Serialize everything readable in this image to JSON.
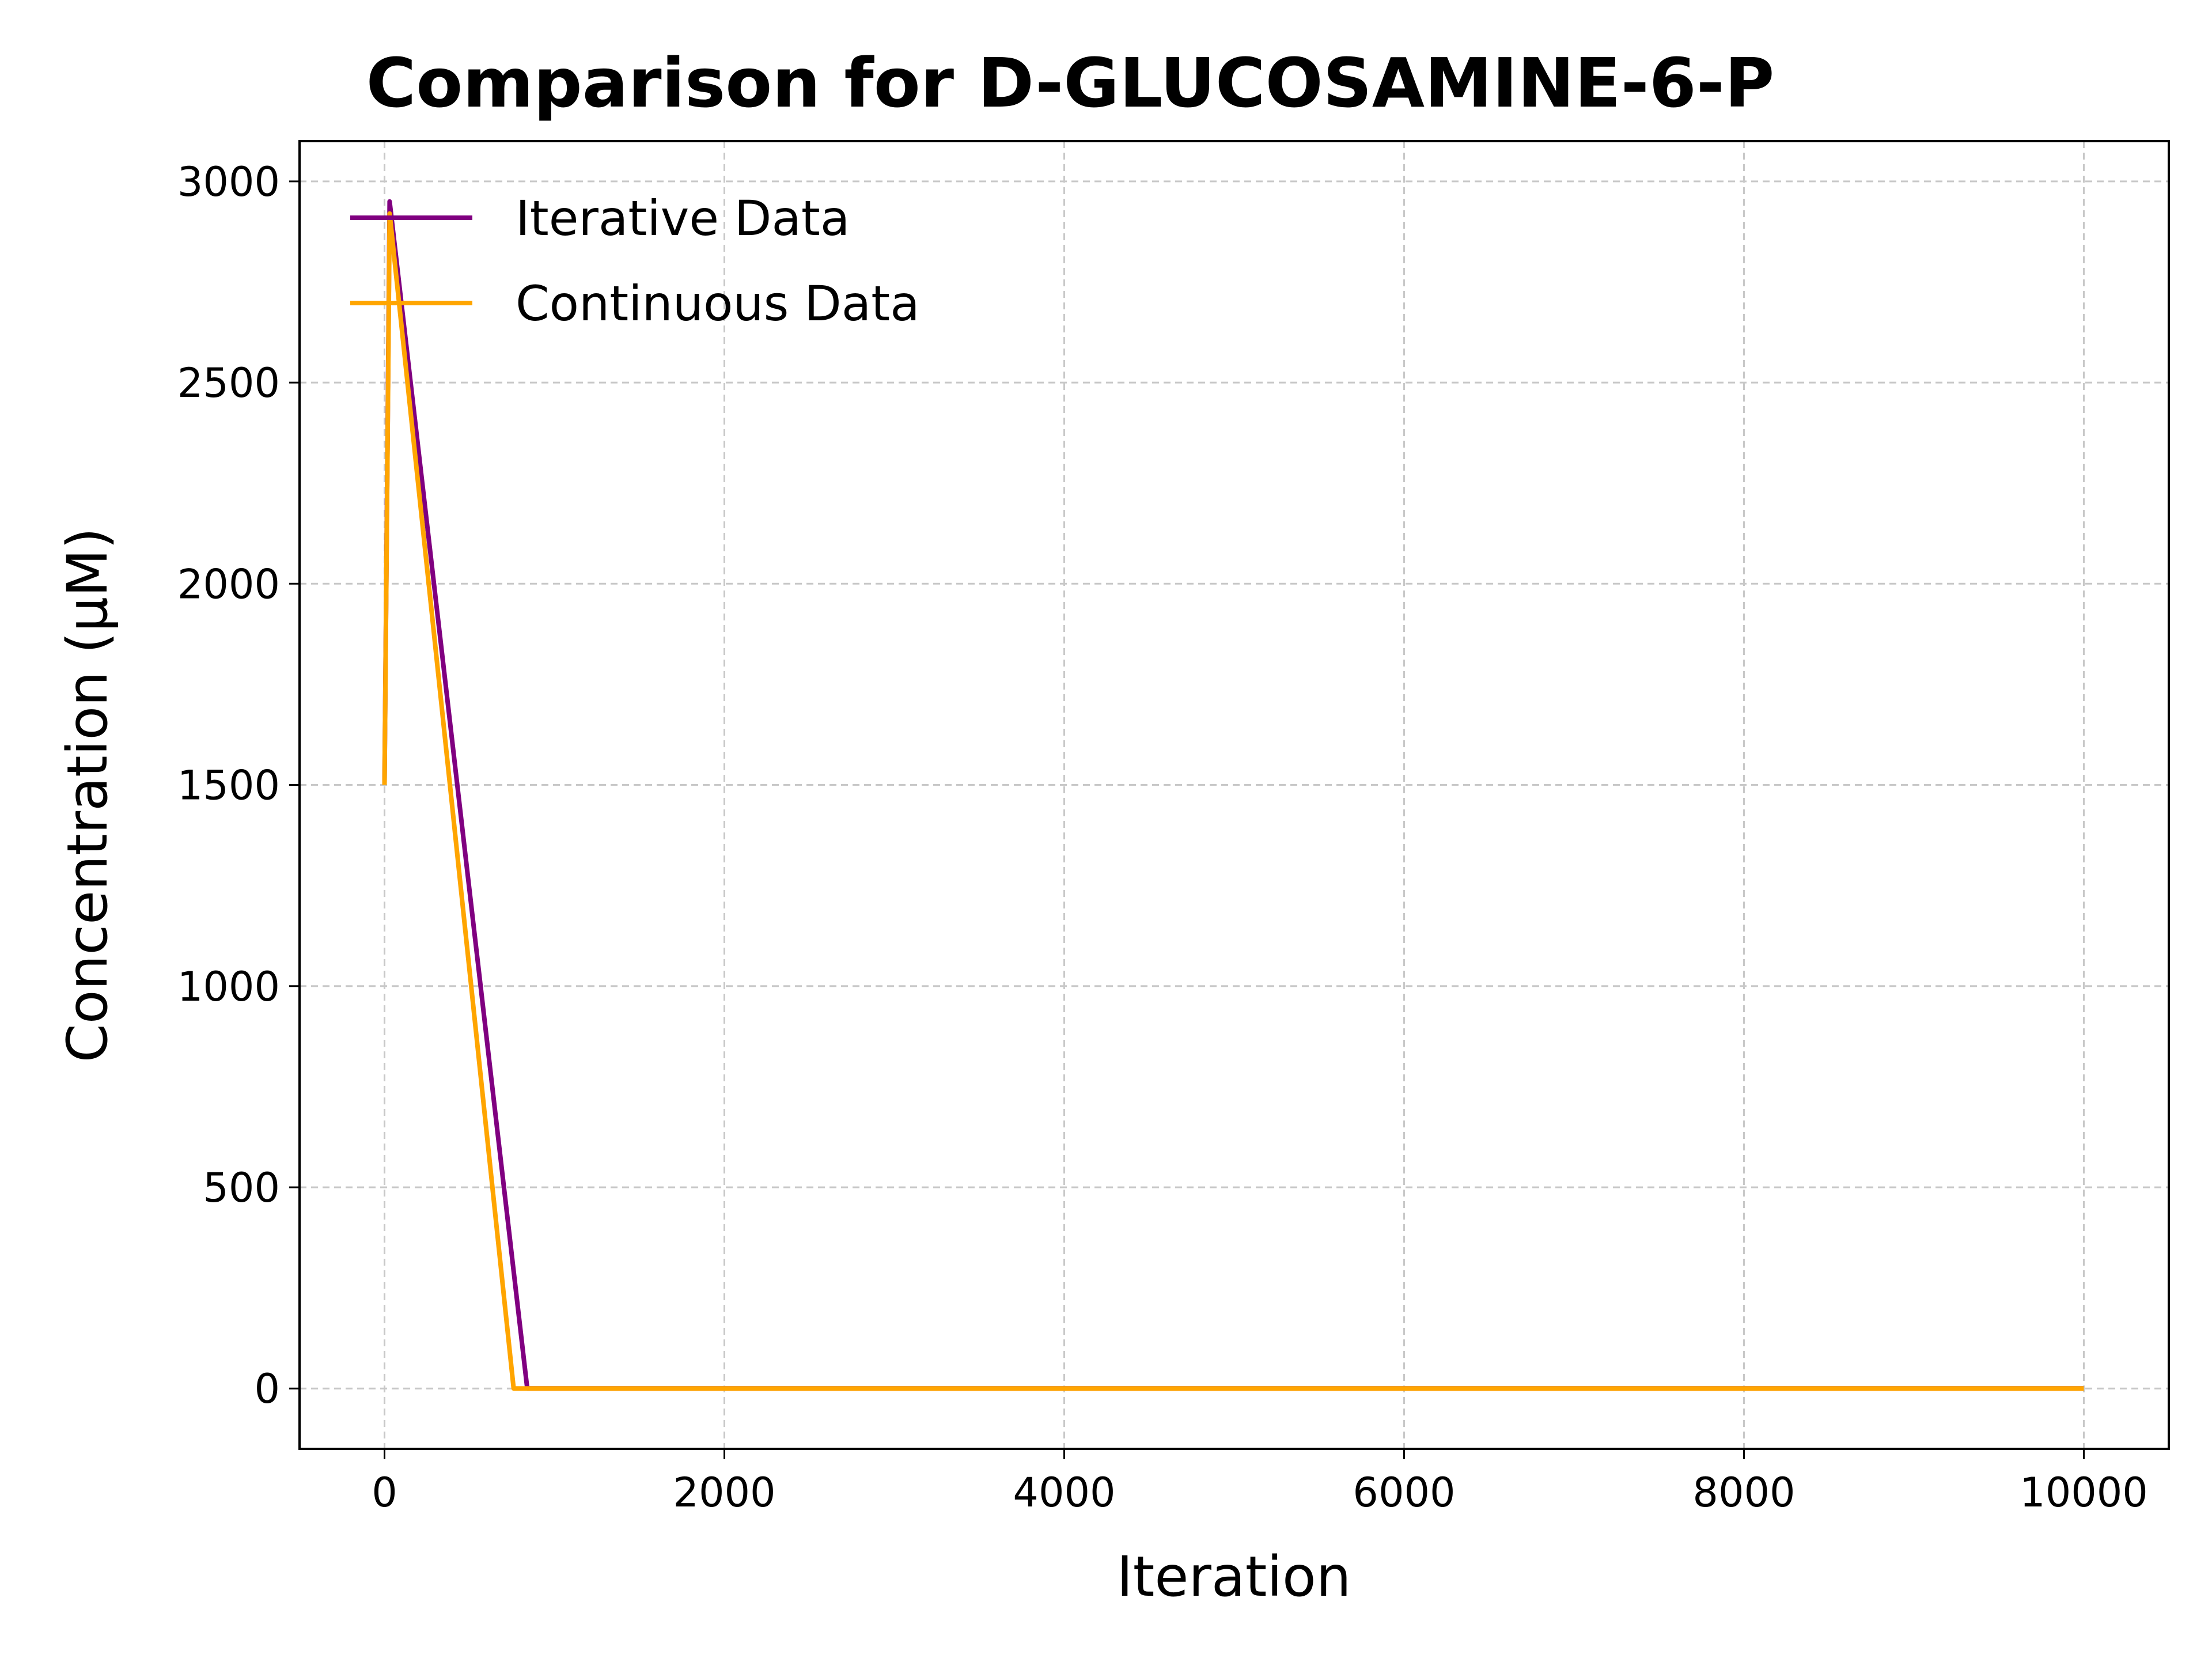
{
  "chart_data": {
    "type": "line",
    "title": "Comparison for D-GLUCOSAMINE-6-P",
    "xlabel": "Iteration",
    "ylabel": "Concentration (μM)",
    "xlim": [
      -500,
      10500
    ],
    "ylim": [
      -150,
      3100
    ],
    "xticks": [
      0,
      2000,
      4000,
      6000,
      8000,
      10000
    ],
    "xtick_labels": [
      "0",
      "2000",
      "4000",
      "6000",
      "8000",
      "10000"
    ],
    "yticks": [
      0,
      500,
      1000,
      1500,
      2000,
      2500,
      3000
    ],
    "ytick_labels": [
      "0",
      "500",
      "1000",
      "1500",
      "2000",
      "2500",
      "3000"
    ],
    "grid": true,
    "legend_position": "upper-left",
    "series": [
      {
        "name": "Iterative Data",
        "color": "#800080",
        "x": [
          0,
          30,
          840,
          10000
        ],
        "y": [
          1500,
          2950,
          0,
          0
        ]
      },
      {
        "name": "Continuous Data",
        "color": "#FFA500",
        "x": [
          0,
          30,
          760,
          10000
        ],
        "y": [
          1500,
          2920,
          0,
          0
        ]
      }
    ]
  }
}
